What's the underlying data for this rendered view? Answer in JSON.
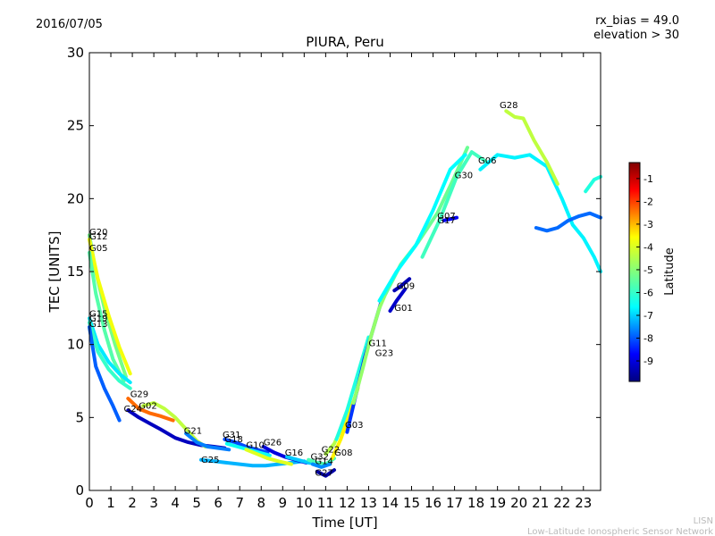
{
  "header": {
    "date": "2016/07/05",
    "rx_bias": "rx_bias = 49.0",
    "elevation": "elevation > 30"
  },
  "footer": {
    "line1": "LISN",
    "line2": "Low-Latitude Ionospheric Sensor Network"
  },
  "chart_data": {
    "type": "scatter",
    "title": "PIURA, Peru",
    "xlabel": "Time [UT]",
    "ylabel": "TEC [UNITS]",
    "xlim": [
      0,
      23.8
    ],
    "ylim": [
      0,
      30
    ],
    "xticks": [
      "0",
      "1",
      "2",
      "3",
      "4",
      "5",
      "6",
      "7",
      "8",
      "9",
      "10",
      "11",
      "12",
      "13",
      "14",
      "15",
      "16",
      "17",
      "18",
      "19",
      "20",
      "21",
      "22",
      "23"
    ],
    "yticks": [
      "0",
      "5",
      "10",
      "15",
      "20",
      "25",
      "30"
    ],
    "grid": false,
    "colorbar": {
      "label": "Latitude",
      "range": [
        -9.9,
        -0.3
      ],
      "ticks": [
        "-1",
        "-2",
        "-3",
        "-4",
        "-5",
        "-6",
        "-7",
        "-8",
        "-9"
      ],
      "colormap": [
        "#00007f",
        "#0000ff",
        "#007fff",
        "#00ffff",
        "#7fff7f",
        "#ffff00",
        "#ff7f00",
        "#ff0000",
        "#7f0000"
      ]
    },
    "series": [
      {
        "name": "G20",
        "lat": -5.2,
        "x": [
          0.0,
          0.3,
          0.7,
          1.2,
          1.7
        ],
        "y": [
          17.5,
          15.0,
          12.5,
          10.0,
          7.8
        ]
      },
      {
        "name": "G12",
        "lat": -4.0,
        "x": [
          0.0,
          0.4,
          0.9,
          1.4,
          1.9
        ],
        "y": [
          17.2,
          14.5,
          12.0,
          9.8,
          8.0
        ]
      },
      {
        "name": "G05",
        "lat": -5.5,
        "x": [
          0.0,
          0.3,
          0.7,
          1.1,
          1.6
        ],
        "y": [
          16.3,
          13.5,
          11.0,
          9.0,
          7.5
        ]
      },
      {
        "name": "G15",
        "lat": -6.5,
        "x": [
          0.0,
          0.4,
          0.9,
          1.4,
          1.9
        ],
        "y": [
          11.8,
          10.0,
          8.8,
          8.0,
          7.4
        ]
      },
      {
        "name": "G19",
        "lat": -5.8,
        "x": [
          0.0,
          0.4,
          0.9,
          1.4,
          1.9
        ],
        "y": [
          11.5,
          9.5,
          8.3,
          7.5,
          7.0
        ]
      },
      {
        "name": "G13",
        "lat": -7.8,
        "x": [
          0.0,
          0.3,
          0.7,
          1.1,
          1.4
        ],
        "y": [
          11.2,
          8.5,
          7.0,
          5.8,
          4.8
        ]
      },
      {
        "name": "G29",
        "lat": -2.5,
        "x": [
          1.8,
          2.3,
          2.8,
          3.3,
          3.9
        ],
        "y": [
          6.3,
          5.6,
          5.3,
          5.1,
          4.8
        ]
      },
      {
        "name": "G24",
        "lat": -9.3,
        "x": [
          1.8,
          2.3,
          2.8,
          3.3,
          4.0,
          4.6,
          5.2,
          5.8,
          6.3
        ],
        "y": [
          5.5,
          5.0,
          4.6,
          4.2,
          3.6,
          3.3,
          3.1,
          3.0,
          2.9
        ]
      },
      {
        "name": "G02",
        "lat": -4.5,
        "x": [
          2.5,
          3.0,
          3.5,
          4.0,
          4.5,
          5.0,
          5.4
        ],
        "y": [
          5.8,
          6.0,
          5.6,
          5.0,
          4.2,
          3.4,
          3.0
        ]
      },
      {
        "name": "G21",
        "lat": -7.5,
        "x": [
          4.5,
          5.0,
          5.5,
          6.0,
          6.5
        ],
        "y": [
          3.9,
          3.3,
          3.0,
          2.9,
          2.8
        ]
      },
      {
        "name": "G25",
        "lat": -7.0,
        "x": [
          5.2,
          5.8,
          6.4,
          7.0,
          7.6,
          8.2,
          8.8,
          9.4,
          10.0
        ],
        "y": [
          2.1,
          2.0,
          1.9,
          1.8,
          1.7,
          1.7,
          1.8,
          1.9,
          2.0
        ]
      },
      {
        "name": "G31",
        "lat": -8.0,
        "x": [
          6.3,
          6.8,
          7.3,
          7.8,
          8.3
        ],
        "y": [
          3.5,
          3.3,
          3.0,
          2.8,
          2.6
        ]
      },
      {
        "name": "G18",
        "lat": -6.2,
        "x": [
          6.4,
          6.9,
          7.4,
          7.9,
          8.4
        ],
        "y": [
          3.2,
          3.0,
          2.8,
          2.6,
          2.4
        ]
      },
      {
        "name": "G10",
        "lat": -4.2,
        "x": [
          7.3,
          7.8,
          8.3,
          8.8,
          9.4
        ],
        "y": [
          2.8,
          2.5,
          2.2,
          2.0,
          1.8
        ]
      },
      {
        "name": "G26",
        "lat": -9.0,
        "x": [
          8.1,
          8.6,
          9.1,
          9.6,
          10.1
        ],
        "y": [
          3.0,
          2.6,
          2.3,
          2.1,
          1.9
        ]
      },
      {
        "name": "G16",
        "lat": -6.8,
        "x": [
          9.2,
          9.7,
          10.2,
          10.7
        ],
        "y": [
          2.3,
          2.1,
          1.9,
          1.8
        ]
      },
      {
        "name": "G32",
        "lat": -5.6,
        "x": [
          10.2,
          10.6,
          11.0,
          11.4
        ],
        "y": [
          2.1,
          1.9,
          1.8,
          2.2
        ]
      },
      {
        "name": "G14",
        "lat": -7.4,
        "x": [
          10.4,
          10.8,
          11.2
        ],
        "y": [
          1.8,
          1.6,
          1.8
        ]
      },
      {
        "name": "G27",
        "lat": -9.5,
        "x": [
          10.6,
          11.0,
          11.4
        ],
        "y": [
          1.3,
          1.0,
          1.4
        ]
      },
      {
        "name": "G22",
        "lat": -4.6,
        "x": [
          11.0,
          11.4,
          11.8,
          12.2
        ],
        "y": [
          2.5,
          3.2,
          4.5,
          6.0
        ]
      },
      {
        "name": "G08",
        "lat": -3.8,
        "x": [
          11.3,
          11.7,
          12.1,
          12.5
        ],
        "y": [
          2.2,
          3.5,
          5.2,
          7.0
        ]
      },
      {
        "name": "G03",
        "lat": -6.0,
        "x": [
          11.5,
          12.0,
          12.5,
          13.0
        ],
        "y": [
          3.5,
          5.5,
          8.0,
          10.5
        ]
      },
      {
        "name": "G11",
        "lat": -8.2,
        "x": [
          12.0,
          12.4,
          12.8,
          13.2,
          13.6
        ],
        "y": [
          4.0,
          6.5,
          9.0,
          11.0,
          13.0
        ]
      },
      {
        "name": "G23",
        "lat": -4.9,
        "x": [
          12.3,
          12.7,
          13.1,
          13.5,
          14.0
        ],
        "y": [
          6.0,
          8.2,
          10.5,
          12.5,
          14.2
        ]
      },
      {
        "name": "G09",
        "lat": -9.4,
        "x": [
          14.2,
          14.5,
          14.9
        ],
        "y": [
          13.7,
          14.0,
          14.5
        ]
      },
      {
        "name": "G01",
        "lat": -9.2,
        "x": [
          14.0,
          14.3,
          14.7
        ],
        "y": [
          12.3,
          13.0,
          13.8
        ]
      },
      {
        "name": "G07",
        "lat": -8.8,
        "x": [
          16.5,
          16.8,
          17.1
        ],
        "y": [
          18.5,
          18.6,
          18.7
        ]
      },
      {
        "name": "G17",
        "lat": -5.3,
        "x": [
          13.8,
          14.5,
          15.3,
          16.2,
          17.0,
          17.6
        ],
        "y": [
          13.5,
          15.5,
          17.0,
          19.0,
          21.5,
          23.5
        ]
      },
      {
        "name": "G30",
        "lat": -6.3,
        "x": [
          13.5,
          14.3,
          15.2,
          16.0,
          16.8,
          17.5
        ],
        "y": [
          13.0,
          15.0,
          16.8,
          19.2,
          22.0,
          23.0
        ]
      },
      {
        "name": "G06",
        "lat": -5.7,
        "x": [
          15.5,
          16.3,
          17.1,
          17.8,
          18.5
        ],
        "y": [
          16.0,
          18.5,
          21.5,
          23.2,
          22.5
        ]
      },
      {
        "name": "G28",
        "lat": -6.4,
        "x": [
          18.2,
          19.0,
          19.8,
          20.5,
          21.3,
          22.0,
          22.5,
          23.0,
          23.5,
          23.8
        ],
        "y": [
          22.0,
          23.0,
          22.8,
          23.0,
          22.2,
          20.0,
          18.2,
          17.3,
          16.0,
          15.0
        ]
      },
      {
        "name": "G28",
        "lat": -4.5,
        "x": [
          19.4,
          19.8,
          20.2,
          20.7,
          21.3,
          21.8
        ],
        "y": [
          26.0,
          25.6,
          25.5,
          24.0,
          22.5,
          21.0
        ]
      },
      {
        "name": "G28",
        "lat": -7.7,
        "x": [
          20.8,
          21.3,
          21.8,
          22.3,
          22.8,
          23.3,
          23.8
        ],
        "y": [
          18.0,
          17.8,
          18.0,
          18.5,
          18.8,
          19.0,
          18.7
        ]
      },
      {
        "name": "G28",
        "lat": -6.0,
        "x": [
          23.1,
          23.5,
          23.8
        ],
        "y": [
          20.5,
          21.3,
          21.5
        ]
      }
    ],
    "labels": [
      {
        "text": "G20",
        "x": 0.0,
        "y": 17.5
      },
      {
        "text": "G12",
        "x": 0.0,
        "y": 17.2
      },
      {
        "text": "G05",
        "x": 0.0,
        "y": 16.4
      },
      {
        "text": "G15",
        "x": 0.0,
        "y": 11.9
      },
      {
        "text": "G19",
        "x": 0.0,
        "y": 11.6
      },
      {
        "text": "G13",
        "x": 0.0,
        "y": 11.2
      },
      {
        "text": "G29",
        "x": 1.9,
        "y": 6.4
      },
      {
        "text": "G24",
        "x": 1.6,
        "y": 5.4
      },
      {
        "text": "G02",
        "x": 2.3,
        "y": 5.6
      },
      {
        "text": "G21",
        "x": 4.4,
        "y": 3.9
      },
      {
        "text": "G25",
        "x": 5.2,
        "y": 1.9
      },
      {
        "text": "G31",
        "x": 6.2,
        "y": 3.6
      },
      {
        "text": "G18",
        "x": 6.3,
        "y": 3.3
      },
      {
        "text": "G10",
        "x": 7.3,
        "y": 2.9
      },
      {
        "text": "G26",
        "x": 8.1,
        "y": 3.1
      },
      {
        "text": "G16",
        "x": 9.1,
        "y": 2.4
      },
      {
        "text": "G32",
        "x": 10.3,
        "y": 2.1
      },
      {
        "text": "G14",
        "x": 10.5,
        "y": 1.8
      },
      {
        "text": "G27",
        "x": 10.5,
        "y": 1.0
      },
      {
        "text": "G22",
        "x": 10.8,
        "y": 2.6
      },
      {
        "text": "G08",
        "x": 11.4,
        "y": 2.4
      },
      {
        "text": "G03",
        "x": 11.9,
        "y": 4.3
      },
      {
        "text": "G11",
        "x": 13.0,
        "y": 9.9
      },
      {
        "text": "G23",
        "x": 13.3,
        "y": 9.2
      },
      {
        "text": "G09",
        "x": 14.3,
        "y": 13.8
      },
      {
        "text": "G01",
        "x": 14.2,
        "y": 12.3
      },
      {
        "text": "G07",
        "x": 16.2,
        "y": 18.6
      },
      {
        "text": "G17",
        "x": 16.2,
        "y": 18.3
      },
      {
        "text": "G30",
        "x": 17.0,
        "y": 21.4
      },
      {
        "text": "G06",
        "x": 18.1,
        "y": 22.4
      },
      {
        "text": "G28",
        "x": 19.1,
        "y": 26.2
      }
    ]
  }
}
